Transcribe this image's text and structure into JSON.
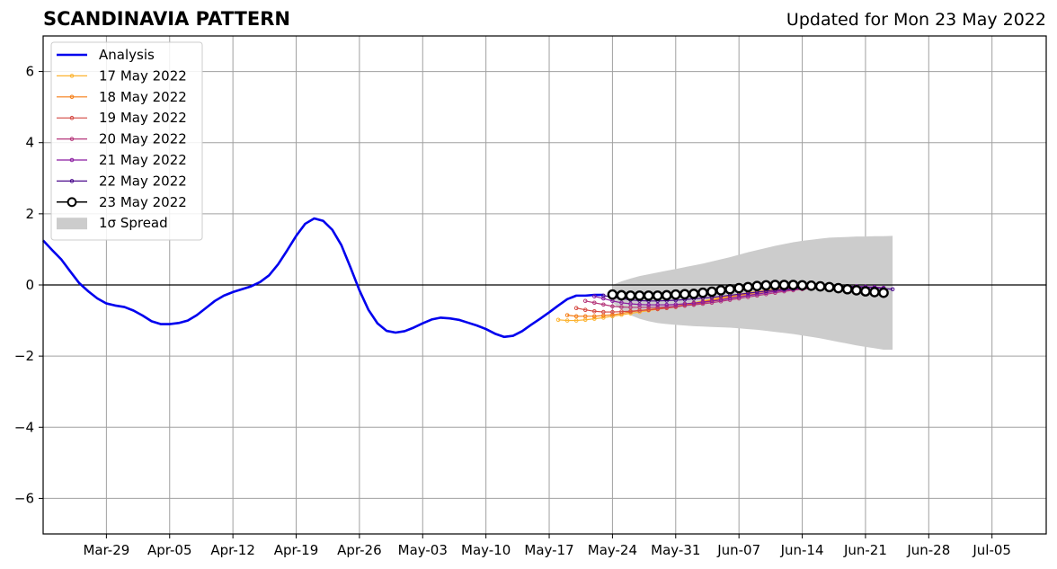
{
  "header": {
    "title": "SCANDINAVIA PATTERN",
    "updated": "Updated for Mon 23 May 2022"
  },
  "chart_data": {
    "type": "line",
    "title": "SCANDINAVIA PATTERN",
    "subtitle": "Updated for Mon 23 May 2022",
    "xlabel": "",
    "ylabel": "",
    "x_axis_type": "date",
    "xlim": [
      "2022-03-22",
      "2022-07-11"
    ],
    "ylim": [
      -7,
      7
    ],
    "yticks": [
      -6,
      -4,
      -2,
      0,
      2,
      4,
      6
    ],
    "ytick_labels": [
      "−6",
      "−4",
      "−2",
      "0",
      "2",
      "4",
      "6"
    ],
    "xticks": [
      "2022-03-29",
      "2022-04-05",
      "2022-04-12",
      "2022-04-19",
      "2022-04-26",
      "2022-05-03",
      "2022-05-10",
      "2022-05-17",
      "2022-05-24",
      "2022-05-31",
      "2022-06-07",
      "2022-06-14",
      "2022-06-21",
      "2022-06-28",
      "2022-07-05"
    ],
    "xtick_labels": [
      "Mar-29",
      "Apr-05",
      "Apr-12",
      "Apr-19",
      "Apr-26",
      "May-03",
      "May-10",
      "May-17",
      "May-24",
      "May-31",
      "Jun-07",
      "Jun-14",
      "Jun-21",
      "Jun-28",
      "Jul-05"
    ],
    "grid": true,
    "zero_line": true,
    "legend_position": "top-left",
    "series": [
      {
        "name": "Analysis",
        "kind": "analysis",
        "color": "#0000ee",
        "x": [
          "2022-03-22",
          "2022-03-23",
          "2022-03-24",
          "2022-03-25",
          "2022-03-26",
          "2022-03-27",
          "2022-03-28",
          "2022-03-29",
          "2022-03-30",
          "2022-03-31",
          "2022-04-01",
          "2022-04-02",
          "2022-04-03",
          "2022-04-04",
          "2022-04-05",
          "2022-04-06",
          "2022-04-07",
          "2022-04-08",
          "2022-04-09",
          "2022-04-10",
          "2022-04-11",
          "2022-04-12",
          "2022-04-13",
          "2022-04-14",
          "2022-04-15",
          "2022-04-16",
          "2022-04-17",
          "2022-04-18",
          "2022-04-19",
          "2022-04-20",
          "2022-04-21",
          "2022-04-22",
          "2022-04-23",
          "2022-04-24",
          "2022-04-25",
          "2022-04-26",
          "2022-04-27",
          "2022-04-28",
          "2022-04-29",
          "2022-04-30",
          "2022-05-01",
          "2022-05-02",
          "2022-05-03",
          "2022-05-04",
          "2022-05-05",
          "2022-05-06",
          "2022-05-07",
          "2022-05-08",
          "2022-05-09",
          "2022-05-10",
          "2022-05-11",
          "2022-05-12",
          "2022-05-13",
          "2022-05-14",
          "2022-05-15",
          "2022-05-16",
          "2022-05-17",
          "2022-05-18",
          "2022-05-19",
          "2022-05-20",
          "2022-05-21",
          "2022-05-22",
          "2022-05-23"
        ],
        "y": [
          1.25,
          0.98,
          0.72,
          0.38,
          0.05,
          -0.18,
          -0.38,
          -0.52,
          -0.58,
          -0.62,
          -0.72,
          -0.86,
          -1.02,
          -1.1,
          -1.1,
          -1.07,
          -1.0,
          -0.85,
          -0.65,
          -0.45,
          -0.3,
          -0.2,
          -0.12,
          -0.04,
          0.08,
          0.27,
          0.58,
          0.97,
          1.38,
          1.72,
          1.87,
          1.8,
          1.55,
          1.12,
          0.5,
          -0.15,
          -0.7,
          -1.08,
          -1.29,
          -1.34,
          -1.3,
          -1.2,
          -1.08,
          -0.97,
          -0.92,
          -0.94,
          -0.98,
          -1.06,
          -1.14,
          -1.24,
          -1.37,
          -1.46,
          -1.43,
          -1.3,
          -1.12,
          -0.95,
          -0.77,
          -0.58,
          -0.4,
          -0.3,
          -0.3,
          -0.28,
          -0.28
        ]
      },
      {
        "name": "17 May 2022",
        "kind": "forecast",
        "color": "#fcb330",
        "start": "2022-05-18",
        "y": [
          -0.98,
          -1.0,
          -1.0,
          -0.98,
          -0.95,
          -0.92,
          -0.88,
          -0.84,
          -0.8,
          -0.76,
          -0.72,
          -0.68,
          -0.64,
          -0.6,
          -0.55,
          -0.5,
          -0.45,
          -0.4,
          -0.35,
          -0.3,
          -0.26,
          -0.22,
          -0.18,
          -0.15,
          -0.12,
          -0.1,
          -0.08,
          -0.07,
          -0.06,
          -0.06,
          -0.05,
          -0.05,
          -0.06
        ]
      },
      {
        "name": "18 May 2022",
        "kind": "forecast",
        "color": "#f57d15",
        "start": "2022-05-19",
        "y": [
          -0.85,
          -0.88,
          -0.88,
          -0.88,
          -0.86,
          -0.84,
          -0.8,
          -0.76,
          -0.72,
          -0.69,
          -0.66,
          -0.63,
          -0.6,
          -0.56,
          -0.52,
          -0.47,
          -0.43,
          -0.38,
          -0.33,
          -0.29,
          -0.25,
          -0.21,
          -0.17,
          -0.14,
          -0.11,
          -0.09,
          -0.07,
          -0.06,
          -0.05,
          -0.05,
          -0.05,
          -0.05,
          -0.06
        ]
      },
      {
        "name": "19 May 2022",
        "kind": "forecast",
        "color": "#d44842",
        "start": "2022-05-20",
        "y": [
          -0.65,
          -0.7,
          -0.74,
          -0.76,
          -0.76,
          -0.75,
          -0.74,
          -0.72,
          -0.7,
          -0.68,
          -0.65,
          -0.62,
          -0.58,
          -0.54,
          -0.5,
          -0.46,
          -0.42,
          -0.37,
          -0.33,
          -0.29,
          -0.25,
          -0.21,
          -0.17,
          -0.14,
          -0.11,
          -0.09,
          -0.07,
          -0.06,
          -0.05,
          -0.05,
          -0.05,
          -0.05,
          -0.06
        ]
      },
      {
        "name": "20 May 2022",
        "kind": "forecast",
        "color": "#b5367a",
        "start": "2022-05-21",
        "y": [
          -0.45,
          -0.5,
          -0.55,
          -0.6,
          -0.62,
          -0.63,
          -0.63,
          -0.63,
          -0.63,
          -0.62,
          -0.6,
          -0.58,
          -0.56,
          -0.53,
          -0.5,
          -0.46,
          -0.42,
          -0.38,
          -0.34,
          -0.3,
          -0.26,
          -0.22,
          -0.18,
          -0.15,
          -0.12,
          -0.1,
          -0.08,
          -0.06,
          -0.05,
          -0.05,
          -0.05,
          -0.06,
          -0.07
        ]
      },
      {
        "name": "21 May 2022",
        "kind": "forecast",
        "color": "#8a1ba0",
        "start": "2022-05-22",
        "y": [
          -0.32,
          -0.38,
          -0.45,
          -0.5,
          -0.53,
          -0.55,
          -0.56,
          -0.56,
          -0.56,
          -0.55,
          -0.53,
          -0.51,
          -0.48,
          -0.45,
          -0.42,
          -0.38,
          -0.34,
          -0.3,
          -0.26,
          -0.22,
          -0.18,
          -0.15,
          -0.12,
          -0.1,
          -0.08,
          -0.06,
          -0.05,
          -0.04,
          -0.04,
          -0.04,
          -0.05,
          -0.06,
          -0.08
        ]
      },
      {
        "name": "22 May 2022",
        "kind": "forecast",
        "color": "#4b0a8c",
        "start": "2022-05-23",
        "y": [
          -0.3,
          -0.34,
          -0.38,
          -0.42,
          -0.44,
          -0.45,
          -0.45,
          -0.44,
          -0.43,
          -0.41,
          -0.39,
          -0.37,
          -0.35,
          -0.32,
          -0.29,
          -0.26,
          -0.23,
          -0.2,
          -0.17,
          -0.14,
          -0.12,
          -0.1,
          -0.08,
          -0.06,
          -0.05,
          -0.04,
          -0.04,
          -0.04,
          -0.05,
          -0.06,
          -0.08,
          -0.1,
          -0.12
        ]
      },
      {
        "name": "23 May 2022",
        "kind": "current",
        "color": "#000000",
        "start": "2022-05-24",
        "y": [
          -0.27,
          -0.29,
          -0.3,
          -0.3,
          -0.3,
          -0.3,
          -0.29,
          -0.27,
          -0.26,
          -0.25,
          -0.22,
          -0.19,
          -0.15,
          -0.12,
          -0.09,
          -0.06,
          -0.03,
          -0.01,
          0.0,
          0.0,
          0.0,
          -0.01,
          -0.02,
          -0.04,
          -0.06,
          -0.09,
          -0.12,
          -0.15,
          -0.18,
          -0.2,
          -0.22
        ]
      }
    ],
    "spread": {
      "name": "1σ Spread",
      "color": "#cccccc",
      "start": "2022-05-24",
      "upper": [
        0.0,
        0.1,
        0.18,
        0.25,
        0.3,
        0.35,
        0.4,
        0.45,
        0.5,
        0.55,
        0.6,
        0.66,
        0.72,
        0.78,
        0.85,
        0.92,
        0.98,
        1.04,
        1.1,
        1.15,
        1.2,
        1.24,
        1.27,
        1.3,
        1.33,
        1.34,
        1.35,
        1.36,
        1.36,
        1.37,
        1.37,
        1.38
      ],
      "lower": [
        -0.5,
        -0.7,
        -0.85,
        -0.95,
        -1.02,
        -1.07,
        -1.1,
        -1.12,
        -1.14,
        -1.16,
        -1.17,
        -1.18,
        -1.19,
        -1.2,
        -1.22,
        -1.24,
        -1.26,
        -1.29,
        -1.32,
        -1.35,
        -1.38,
        -1.42,
        -1.46,
        -1.5,
        -1.55,
        -1.6,
        -1.65,
        -1.7,
        -1.74,
        -1.78,
        -1.82,
        -1.82
      ]
    }
  }
}
